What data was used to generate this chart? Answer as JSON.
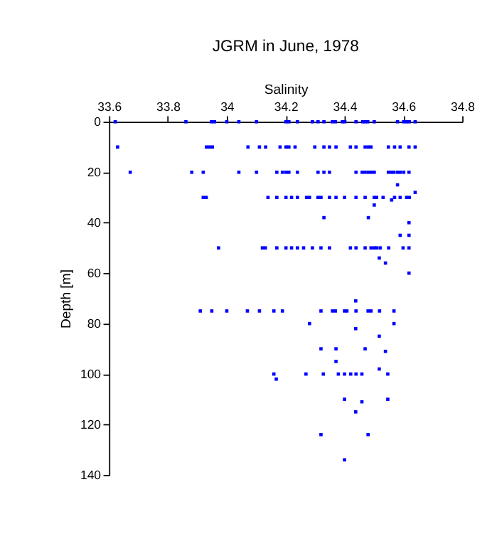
{
  "chart_data": {
    "type": "scatter",
    "title": "JGRM in June, 1978",
    "xlabel": "Salinity",
    "ylabel": "Depth [m]",
    "xlim": [
      33.6,
      34.8
    ],
    "xticks": [
      33.6,
      33.8,
      34,
      34.2,
      34.4,
      34.6,
      34.8
    ],
    "ylim": [
      140,
      0
    ],
    "yticks": [
      0,
      20,
      40,
      60,
      80,
      100,
      120,
      140
    ],
    "grid": false,
    "legend": false,
    "marker": "square",
    "series": [
      {
        "color": "#0000ff",
        "x": [
          33.621,
          33.861,
          33.948,
          33.958,
          34.0,
          34.041,
          34.101,
          34.201,
          34.211,
          34.24,
          34.291,
          34.31,
          34.33,
          34.359,
          34.369,
          34.393,
          34.401,
          34.439,
          34.462,
          34.47,
          34.479,
          34.501,
          34.58,
          34.601,
          34.611,
          34.62,
          34.64,
          33.629,
          33.931,
          33.941,
          33.951,
          34.072,
          34.111,
          34.132,
          34.181,
          34.201,
          34.211,
          34.232,
          34.299,
          34.33,
          34.349,
          34.371,
          34.42,
          34.439,
          34.47,
          34.481,
          34.49,
          34.549,
          34.57,
          34.589,
          34.619,
          34.64,
          33.672,
          33.881,
          33.92,
          34.041,
          34.101,
          34.17,
          34.189,
          34.201,
          34.211,
          34.24,
          34.31,
          34.33,
          34.349,
          34.439,
          34.46,
          34.47,
          34.481,
          34.491,
          34.501,
          34.549,
          34.559,
          34.568,
          34.58,
          34.589,
          34.601,
          34.619,
          34.58,
          34.64,
          33.92,
          33.93,
          34.14,
          34.17,
          34.201,
          34.22,
          34.24,
          34.271,
          34.281,
          34.31,
          34.32,
          34.349,
          34.371,
          34.4,
          34.439,
          34.47,
          34.501,
          34.509,
          34.531,
          34.57,
          34.589,
          34.611,
          34.62,
          34.56,
          34.501,
          34.33,
          34.481,
          34.619,
          34.589,
          34.619,
          33.972,
          34.121,
          34.131,
          34.17,
          34.201,
          34.22,
          34.24,
          34.261,
          34.291,
          34.32,
          34.349,
          34.42,
          34.439,
          34.47,
          34.49,
          34.501,
          34.509,
          34.521,
          34.55,
          34.599,
          34.619,
          34.518,
          34.539,
          34.619,
          34.438,
          33.91,
          33.949,
          34.0,
          34.07,
          34.111,
          34.16,
          34.189,
          34.32,
          34.359,
          34.369,
          34.4,
          34.408,
          34.439,
          34.48,
          34.49,
          34.519,
          34.568,
          34.281,
          34.568,
          34.438,
          34.518,
          34.32,
          34.371,
          34.47,
          34.539,
          34.371,
          34.518,
          34.16,
          34.269,
          34.328,
          34.379,
          34.4,
          34.421,
          34.439,
          34.459,
          34.547,
          34.168,
          34.4,
          34.547,
          34.459,
          34.438,
          34.32,
          34.48,
          34.4
        ],
        "values": [
          0,
          0,
          0,
          0,
          0,
          0,
          0,
          0,
          0,
          0,
          0,
          0,
          0,
          0,
          0,
          0,
          0,
          0,
          0,
          0,
          0,
          0,
          0,
          0,
          0,
          0,
          0,
          10,
          10,
          10,
          10,
          10,
          10,
          10,
          10,
          10,
          10,
          10,
          10,
          10,
          10,
          10,
          10,
          10,
          10,
          10,
          10,
          10,
          10,
          10,
          10,
          10,
          20,
          20,
          20,
          20,
          20,
          20,
          20,
          20,
          20,
          20,
          20,
          20,
          20,
          20,
          20,
          20,
          20,
          20,
          20,
          20,
          20,
          20,
          20,
          20,
          20,
          20,
          25,
          28,
          30,
          30,
          30,
          30,
          30,
          30,
          30,
          30,
          30,
          30,
          30,
          30,
          30,
          30,
          30,
          30,
          30,
          30,
          30,
          30,
          30,
          30,
          30,
          31,
          33,
          38,
          38,
          40,
          45,
          45,
          50,
          50,
          50,
          50,
          50,
          50,
          50,
          50,
          50,
          50,
          50,
          50,
          50,
          50,
          50,
          50,
          50,
          50,
          50,
          50,
          50,
          54,
          56,
          60,
          71,
          75,
          75,
          75,
          75,
          75,
          75,
          75,
          75,
          75,
          75,
          75,
          75,
          75,
          75,
          75,
          75,
          75,
          80,
          80,
          82,
          85,
          90,
          90,
          90,
          91,
          95,
          98,
          100,
          100,
          100,
          100,
          100,
          100,
          100,
          100,
          100,
          102,
          110,
          110,
          111,
          115,
          124,
          124,
          134
        ]
      }
    ]
  }
}
